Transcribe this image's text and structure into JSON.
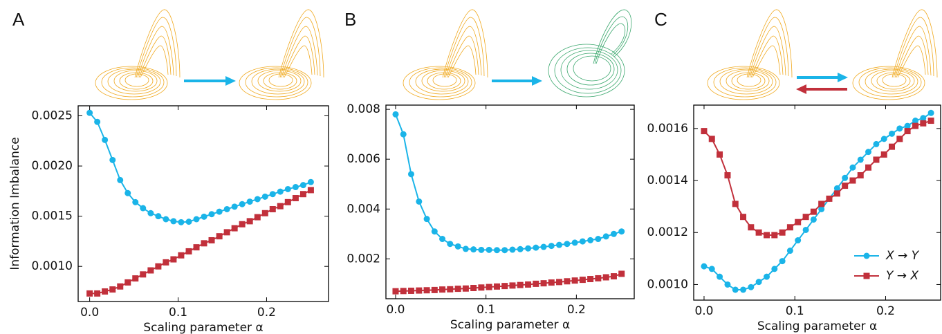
{
  "chart_data": [
    {
      "type": "line",
      "panel_label": "A",
      "y_label": "Information Imbalance",
      "x_label": "Scaling parameter α",
      "x": [
        0,
        0.0086,
        0.0172,
        0.0259,
        0.0345,
        0.0431,
        0.0517,
        0.0603,
        0.069,
        0.0776,
        0.0862,
        0.0948,
        0.1034,
        0.1121,
        0.1207,
        0.1293,
        0.1379,
        0.1466,
        0.1552,
        0.1638,
        0.1724,
        0.181,
        0.1897,
        0.1983,
        0.2069,
        0.2155,
        0.2241,
        0.2328,
        0.2414,
        0.25
      ],
      "series": [
        {
          "name": "X → Y",
          "color": "#1ab4e8",
          "marker": "circle",
          "values": [
            0.00253,
            0.00244,
            0.00226,
            0.00206,
            0.00186,
            0.00173,
            0.00164,
            0.00158,
            0.00153,
            0.0015,
            0.00147,
            0.00145,
            0.00144,
            0.001445,
            0.00147,
            0.001495,
            0.00152,
            0.001545,
            0.00157,
            0.001595,
            0.00162,
            0.001645,
            0.00167,
            0.001695,
            0.00172,
            0.001745,
            0.00177,
            0.00179,
            0.00181,
            0.00184
          ]
        },
        {
          "name": "Y → X",
          "color": "#c1303b",
          "marker": "square",
          "values": [
            0.00073,
            0.00073,
            0.00075,
            0.00077,
            0.0008,
            0.00084,
            0.00088,
            0.00092,
            0.00096,
            0.001,
            0.00104,
            0.00107,
            0.00111,
            0.00115,
            0.00119,
            0.00123,
            0.00126,
            0.0013,
            0.00134,
            0.00138,
            0.00142,
            0.00145,
            0.00149,
            0.00153,
            0.00157,
            0.0016,
            0.00164,
            0.00168,
            0.00172,
            0.00176
          ]
        }
      ],
      "xlim": [
        -0.013,
        0.27
      ],
      "xticks": [
        {
          "value": 0,
          "label": "0.0"
        },
        0.1,
        0.2
      ],
      "ylim": [
        0.00065,
        0.0026
      ],
      "yticks": [
        {
          "value": 0.001,
          "label": "0.0010"
        },
        {
          "value": 0.0015,
          "label": "0.0015"
        },
        {
          "value": 0.002,
          "label": "0.0020"
        },
        {
          "value": 0.0025,
          "label": "0.0025"
        }
      ]
    },
    {
      "type": "line",
      "panel_label": "B",
      "x_label": "Scaling parameter α",
      "x": [
        0,
        0.0086,
        0.0172,
        0.0259,
        0.0345,
        0.0431,
        0.0517,
        0.0603,
        0.069,
        0.0776,
        0.0862,
        0.0948,
        0.1034,
        0.1121,
        0.1207,
        0.1293,
        0.1379,
        0.1466,
        0.1552,
        0.1638,
        0.1724,
        0.181,
        0.1897,
        0.1983,
        0.2069,
        0.2155,
        0.2241,
        0.2328,
        0.2414,
        0.25
      ],
      "series": [
        {
          "name": "X → Y",
          "color": "#1ab4e8",
          "marker": "circle",
          "values": [
            0.0078,
            0.007,
            0.0054,
            0.0043,
            0.0036,
            0.0031,
            0.0028,
            0.0026,
            0.0025,
            0.0024,
            0.00238,
            0.00236,
            0.00236,
            0.00235,
            0.00235,
            0.00237,
            0.00239,
            0.00242,
            0.00245,
            0.00248,
            0.00252,
            0.00256,
            0.0026,
            0.00265,
            0.0027,
            0.00275,
            0.0028,
            0.0029,
            0.003,
            0.0031
          ]
        },
        {
          "name": "Y → X",
          "color": "#c1303b",
          "marker": "square",
          "values": [
            0.0007,
            0.00071,
            0.00072,
            0.00073,
            0.00074,
            0.00075,
            0.00077,
            0.00078,
            0.0008,
            0.00081,
            0.00083,
            0.00085,
            0.00087,
            0.00089,
            0.00091,
            0.00093,
            0.00095,
            0.00097,
            0.001,
            0.00102,
            0.00105,
            0.00107,
            0.0011,
            0.00113,
            0.00116,
            0.00119,
            0.00122,
            0.00126,
            0.0013,
            0.0014
          ]
        }
      ],
      "xlim": [
        -0.0107,
        0.264
      ],
      "xticks": [
        {
          "value": 0,
          "label": "0.0"
        },
        0.1,
        0.2
      ],
      "ylim": [
        0.0004,
        0.00817
      ],
      "yticks": [
        0.002,
        0.004,
        0.006,
        0.008
      ]
    },
    {
      "type": "line",
      "panel_label": "C",
      "x_label": "Scaling parameter α",
      "legend": "lower right",
      "x": [
        0,
        0.0086,
        0.0172,
        0.0259,
        0.0345,
        0.0431,
        0.0517,
        0.0603,
        0.069,
        0.0776,
        0.0862,
        0.0948,
        0.1034,
        0.1121,
        0.1207,
        0.1293,
        0.1379,
        0.1466,
        0.1552,
        0.1638,
        0.1724,
        0.181,
        0.1897,
        0.1983,
        0.2069,
        0.2155,
        0.2241,
        0.2328,
        0.2414,
        0.25
      ],
      "series": [
        {
          "name": "X → Y",
          "color": "#1ab4e8",
          "marker": "circle",
          "values": [
            0.00107,
            0.00106,
            0.00103,
            0.001,
            0.00098,
            0.00098,
            0.00099,
            0.00101,
            0.00103,
            0.00106,
            0.00109,
            0.00113,
            0.00117,
            0.00121,
            0.00125,
            0.00129,
            0.00133,
            0.00137,
            0.00141,
            0.00145,
            0.00148,
            0.00151,
            0.00154,
            0.00156,
            0.00158,
            0.0016,
            0.00161,
            0.00163,
            0.00164,
            0.00166
          ]
        },
        {
          "name": "Y → X",
          "color": "#c1303b",
          "marker": "square",
          "values": [
            0.00159,
            0.00156,
            0.0015,
            0.00142,
            0.00131,
            0.00126,
            0.00122,
            0.0012,
            0.00119,
            0.00119,
            0.0012,
            0.00122,
            0.00124,
            0.00126,
            0.00128,
            0.00131,
            0.00133,
            0.00135,
            0.00138,
            0.0014,
            0.00142,
            0.00145,
            0.00148,
            0.0015,
            0.00153,
            0.00156,
            0.00159,
            0.00161,
            0.00162,
            0.00163
          ]
        }
      ],
      "xlim": [
        -0.0114,
        0.2606
      ],
      "xticks": [
        {
          "value": 0,
          "label": "0.0"
        },
        0.1,
        0.2
      ],
      "ylim": [
        0.00094,
        0.00169
      ],
      "yticks": [
        {
          "value": 0.001,
          "label": "0.0010"
        },
        {
          "value": 0.0012,
          "label": "0.0012"
        },
        {
          "value": 0.0014,
          "label": "0.0014"
        },
        {
          "value": 0.0016,
          "label": "0.0016"
        }
      ]
    }
  ]
}
